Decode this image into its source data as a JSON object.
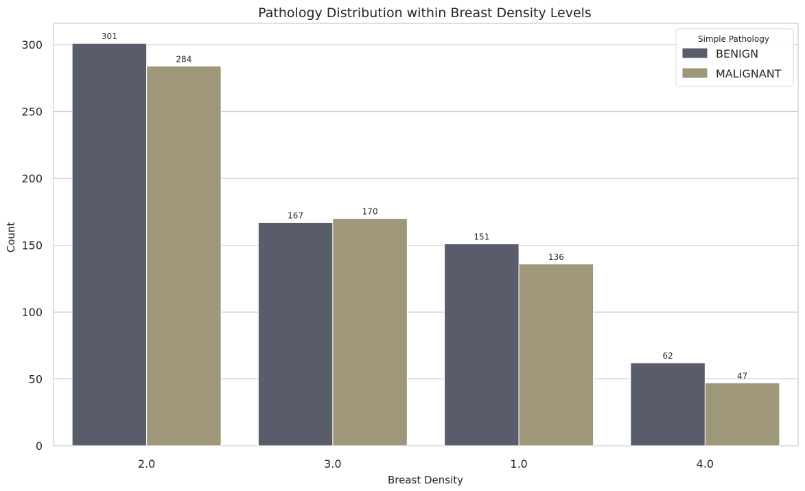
{
  "chart_data": {
    "type": "bar",
    "title": "Pathology Distribution within Breast Density Levels",
    "xlabel": "Breast Density",
    "ylabel": "Count",
    "categories": [
      "2.0",
      "3.0",
      "1.0",
      "4.0"
    ],
    "series": [
      {
        "name": "BENIGN",
        "values": [
          301,
          167,
          151,
          62
        ],
        "color": "#595d6b"
      },
      {
        "name": "MALIGNANT",
        "values": [
          284,
          170,
          136,
          47
        ],
        "color": "#9e977a"
      }
    ],
    "ylim": [
      0,
      316
    ],
    "yticks": [
      0,
      50,
      100,
      150,
      200,
      250,
      300
    ],
    "grid": "y",
    "legend": {
      "title": "Simple Pathology",
      "placement": "top-right"
    }
  }
}
